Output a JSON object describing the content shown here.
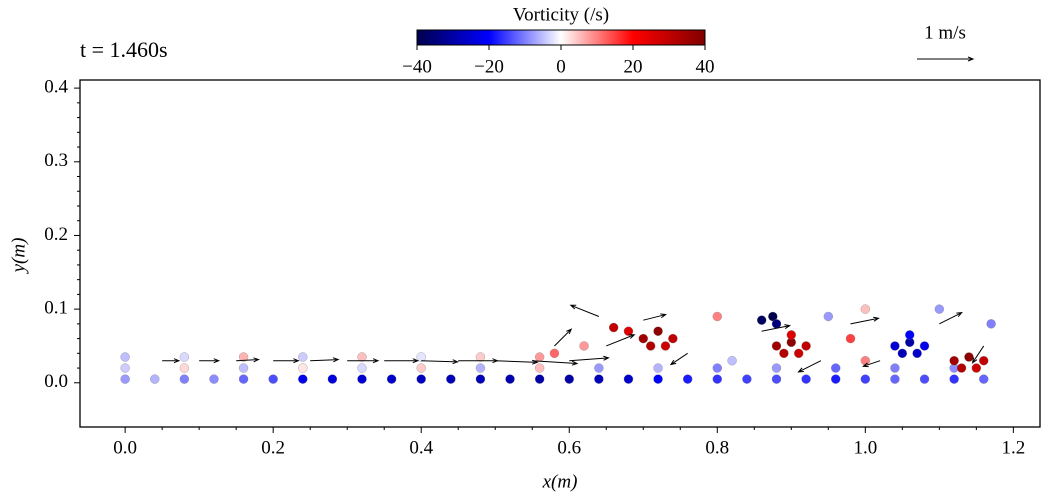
{
  "chart_data": {
    "type": "scatter",
    "title": "t =  1.460s",
    "xlabel": "x(m)",
    "ylabel": "y(m)",
    "xlim": [
      -0.061,
      1.236
    ],
    "ylim": [
      -0.06,
      0.411
    ],
    "xticks": [
      {
        "value": 0.0,
        "label": "0.0"
      },
      {
        "value": 0.2,
        "label": "0.2"
      },
      {
        "value": 0.4,
        "label": "0.4"
      },
      {
        "value": 0.6,
        "label": "0.6"
      },
      {
        "value": 0.8,
        "label": "0.8"
      },
      {
        "value": 1.0,
        "label": "1.0"
      },
      {
        "value": 1.2,
        "label": "1.2"
      }
    ],
    "yticks": [
      {
        "value": 0.0,
        "label": "0.0"
      },
      {
        "value": 0.1,
        "label": "0.1"
      },
      {
        "value": 0.2,
        "label": "0.2"
      },
      {
        "value": 0.3,
        "label": "0.3"
      },
      {
        "value": 0.4,
        "label": "0.4"
      }
    ],
    "colormap": "seismic",
    "colorbar": {
      "label": "Vorticity (/s)",
      "lim": [
        -40,
        40
      ],
      "ticks": [
        {
          "value": -40,
          "label": "−40"
        },
        {
          "value": -20,
          "label": "−20"
        },
        0,
        20,
        40
      ]
    },
    "quiver_key": {
      "label": "1 m/s",
      "value": 1
    },
    "x": [
      0,
      0.04,
      0.08,
      0.12,
      0.16,
      0.2,
      0.24,
      0.28,
      0.32,
      0.36,
      0.4,
      0.44,
      0.48,
      0.52,
      0.56,
      0.6,
      0.64,
      0.68,
      0.72,
      0.76,
      0.8,
      0.84,
      0.88,
      0.92,
      0.96,
      1.0,
      1.04,
      1.08,
      1.12,
      1.16,
      0,
      0.08,
      0.16,
      0.24,
      0.32,
      0.4,
      0.48,
      0.56,
      0.64,
      0.72,
      0.8,
      0.88,
      0.96,
      1.04,
      1.12,
      0,
      0.08,
      0.16,
      0.24,
      0.32,
      0.4,
      0.48,
      0.56,
      0.7,
      0.72,
      0.74,
      0.71,
      0.73,
      0.68,
      0.66,
      0.88,
      0.9,
      0.92,
      0.89,
      0.91,
      0.9,
      1.04,
      1.06,
      1.08,
      1.05,
      1.07,
      1.06,
      1.12,
      1.14,
      1.16,
      1.13,
      1.15,
      0.86,
      0.875,
      0.88,
      0.8,
      0.95,
      1.0,
      1.1,
      1.17,
      0.58,
      0.62,
      0.98,
      1.0,
      0.82
    ],
    "y": [
      0.005,
      0.005,
      0.005,
      0.005,
      0.005,
      0.005,
      0.005,
      0.005,
      0.005,
      0.005,
      0.005,
      0.005,
      0.005,
      0.005,
      0.005,
      0.005,
      0.005,
      0.005,
      0.005,
      0.005,
      0.005,
      0.005,
      0.005,
      0.005,
      0.005,
      0.005,
      0.005,
      0.005,
      0.005,
      0.005,
      0.02,
      0.02,
      0.02,
      0.02,
      0.02,
      0.02,
      0.02,
      0.02,
      0.02,
      0.02,
      0.02,
      0.02,
      0.02,
      0.02,
      0.02,
      0.035,
      0.035,
      0.035,
      0.035,
      0.035,
      0.035,
      0.035,
      0.035,
      0.06,
      0.07,
      0.06,
      0.05,
      0.05,
      0.07,
      0.075,
      0.05,
      0.055,
      0.05,
      0.04,
      0.04,
      0.065,
      0.05,
      0.055,
      0.05,
      0.04,
      0.04,
      0.065,
      0.03,
      0.035,
      0.03,
      0.02,
      0.02,
      0.085,
      0.09,
      0.08,
      0.09,
      0.09,
      0.1,
      0.1,
      0.08,
      0.04,
      0.05,
      0.06,
      0.03,
      0.03
    ],
    "values": [
      -8,
      -6,
      -10,
      -9,
      -12,
      -14,
      -22,
      -24,
      -25,
      -26,
      -27,
      -28,
      -28,
      -29,
      -30,
      -30,
      -28,
      -26,
      -20,
      -18,
      -16,
      -15,
      -14,
      -16,
      -18,
      -15,
      -12,
      -14,
      -16,
      -12,
      -4,
      3,
      -5,
      2,
      -3,
      4,
      -6,
      5,
      -8,
      -6,
      -10,
      -8,
      -12,
      -10,
      -9,
      -5,
      -3,
      6,
      -4,
      5,
      -2,
      4,
      8,
      35,
      38,
      30,
      32,
      28,
      25,
      30,
      35,
      38,
      30,
      32,
      28,
      25,
      -25,
      -30,
      -22,
      -28,
      -26,
      -20,
      35,
      38,
      30,
      32,
      28,
      -38,
      -40,
      -35,
      10,
      -8,
      5,
      -8,
      -10,
      12,
      8,
      15,
      10,
      -5
    ],
    "quiver": {
      "x": [
        0.05,
        0.1,
        0.15,
        0.2,
        0.25,
        0.3,
        0.35,
        0.4,
        0.45,
        0.5,
        0.55,
        0.6,
        0.65,
        0.7,
        0.76,
        0.86,
        0.94,
        0.98,
        1.02,
        1.1,
        1.16,
        0.58,
        0.64
      ],
      "y": [
        0.03,
        0.03,
        0.03,
        0.03,
        0.03,
        0.03,
        0.03,
        0.03,
        0.03,
        0.03,
        0.03,
        0.03,
        0.05,
        0.085,
        0.04,
        0.07,
        0.03,
        0.08,
        0.03,
        0.08,
        0.05,
        0.05,
        0.09
      ],
      "u": [
        0.3,
        0.35,
        0.4,
        0.45,
        0.5,
        0.55,
        0.6,
        0.65,
        0.7,
        0.75,
        0.8,
        0.7,
        0.5,
        0.4,
        -0.3,
        0.5,
        -0.4,
        0.5,
        -0.3,
        0.4,
        -0.2,
        0.3,
        -0.5
      ],
      "v": [
        0,
        0,
        0.02,
        0,
        0.02,
        0,
        0,
        -0.02,
        0,
        -0.03,
        -0.05,
        0.05,
        0.2,
        0.1,
        -0.2,
        0.1,
        -0.2,
        0.1,
        -0.1,
        0.2,
        -0.3,
        0.3,
        0.2
      ]
    }
  }
}
